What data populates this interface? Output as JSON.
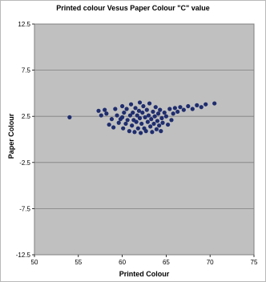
{
  "chart_data": {
    "type": "scatter",
    "title": "Printed colour Vesus Paper Colour \"C\" value",
    "xlabel": "Printed Colour",
    "ylabel": "Paper Colour",
    "xlim": [
      50,
      75
    ],
    "ylim": [
      -12.5,
      12.5
    ],
    "x_ticks": [
      50,
      55,
      60,
      65,
      70,
      75
    ],
    "y_ticks": [
      12.5,
      7.5,
      2.5,
      -2.5,
      -7.5,
      -12.5
    ],
    "grid": true,
    "legend": "none",
    "colors": {
      "plot_background": "#c0c0c0",
      "marker": "#1f2d6e",
      "gridline": "#7f7f7f"
    },
    "series": [
      {
        "name": "",
        "points": [
          [
            54,
            2.4
          ],
          [
            57.3,
            3.1
          ],
          [
            57.6,
            2.6
          ],
          [
            58,
            3.2
          ],
          [
            58.2,
            2.8
          ],
          [
            58.5,
            1.6
          ],
          [
            58.8,
            2.2
          ],
          [
            59,
            1.3
          ],
          [
            59.2,
            3.3
          ],
          [
            59.4,
            2.6
          ],
          [
            59.6,
            1.8
          ],
          [
            59.8,
            2.2
          ],
          [
            60,
            3.6
          ],
          [
            60,
            2.4
          ],
          [
            60.1,
            1.2
          ],
          [
            60.2,
            2.9
          ],
          [
            60.4,
            1.7
          ],
          [
            60.5,
            3.3
          ],
          [
            60.6,
            2.1
          ],
          [
            60.8,
            0.9
          ],
          [
            60.9,
            2.6
          ],
          [
            61,
            3.8
          ],
          [
            61.1,
            1.5
          ],
          [
            61.2,
            2.9
          ],
          [
            61.3,
            2.1
          ],
          [
            61.4,
            0.8
          ],
          [
            61.5,
            3.4
          ],
          [
            61.6,
            1.9
          ],
          [
            61.7,
            2.6
          ],
          [
            61.8,
            1.2
          ],
          [
            61.9,
            3.1
          ],
          [
            62,
            4.0
          ],
          [
            62,
            2.3
          ],
          [
            62.1,
            0.7
          ],
          [
            62.2,
            1.7
          ],
          [
            62.3,
            2.9
          ],
          [
            62.4,
            3.6
          ],
          [
            62.5,
            1.2
          ],
          [
            62.6,
            2.4
          ],
          [
            62.7,
            0.9
          ],
          [
            62.8,
            3.2
          ],
          [
            62.9,
            1.9
          ],
          [
            63,
            2.6
          ],
          [
            63.1,
            3.9
          ],
          [
            63.2,
            1.4
          ],
          [
            63.3,
            2.2
          ],
          [
            63.4,
            0.8
          ],
          [
            63.5,
            3.0
          ],
          [
            63.6,
            1.7
          ],
          [
            63.7,
            2.5
          ],
          [
            63.8,
            3.5
          ],
          [
            63.9,
            1.1
          ],
          [
            64,
            2.0
          ],
          [
            64.1,
            2.8
          ],
          [
            64.2,
            1.5
          ],
          [
            64.3,
            3.2
          ],
          [
            64.4,
            0.9
          ],
          [
            64.5,
            2.3
          ],
          [
            64.6,
            1.8
          ],
          [
            64.8,
            2.9
          ],
          [
            65,
            2.5
          ],
          [
            65.2,
            1.6
          ],
          [
            65.4,
            3.3
          ],
          [
            65.6,
            2.1
          ],
          [
            65.8,
            2.8
          ],
          [
            66,
            3.4
          ],
          [
            66.3,
            3.0
          ],
          [
            66.6,
            3.5
          ],
          [
            67,
            3.2
          ],
          [
            67.5,
            3.6
          ],
          [
            68,
            3.3
          ],
          [
            68.5,
            3.7
          ],
          [
            69,
            3.5
          ],
          [
            69.5,
            3.8
          ],
          [
            70.5,
            3.9
          ]
        ]
      }
    ]
  }
}
